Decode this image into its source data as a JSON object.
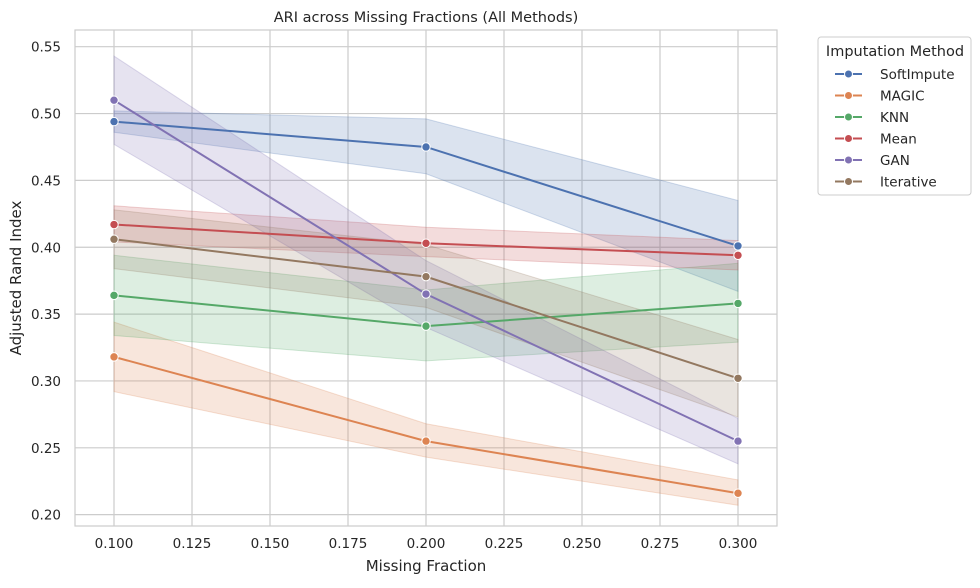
{
  "chart_data": {
    "type": "line",
    "title": "ARI across Missing Fractions (All Methods)",
    "xlabel": "Missing Fraction",
    "ylabel": "Adjusted Rand Index",
    "xlim": [
      0.0875,
      0.3125
    ],
    "ylim": [
      0.1915,
      0.5625
    ],
    "xticks": [
      0.1,
      0.125,
      0.15,
      0.175,
      0.2,
      0.225,
      0.25,
      0.275,
      0.3
    ],
    "xtick_labels": [
      "0.100",
      "0.125",
      "0.150",
      "0.175",
      "0.200",
      "0.225",
      "0.250",
      "0.275",
      "0.300"
    ],
    "yticks": [
      0.2,
      0.25,
      0.3,
      0.35,
      0.4,
      0.45,
      0.5,
      0.55
    ],
    "ytick_labels": [
      "0.20",
      "0.25",
      "0.30",
      "0.35",
      "0.40",
      "0.45",
      "0.50",
      "0.55"
    ],
    "grid": true,
    "legend": {
      "title": "Imputation Method",
      "placement": "outside-top-right"
    },
    "x": [
      0.1,
      0.2,
      0.3
    ],
    "series": [
      {
        "name": "SoftImpute",
        "color": "#4c72b0",
        "values": [
          0.494,
          0.475,
          0.401
        ],
        "ci_low": [
          0.486,
          0.455,
          0.367
        ],
        "ci_high": [
          0.502,
          0.496,
          0.435
        ]
      },
      {
        "name": "MAGIC",
        "color": "#dd8452",
        "values": [
          0.318,
          0.255,
          0.216
        ],
        "ci_low": [
          0.292,
          0.243,
          0.207
        ],
        "ci_high": [
          0.344,
          0.268,
          0.226
        ]
      },
      {
        "name": "KNN",
        "color": "#55a868",
        "values": [
          0.364,
          0.341,
          0.358
        ],
        "ci_low": [
          0.334,
          0.315,
          0.329
        ],
        "ci_high": [
          0.394,
          0.368,
          0.388
        ]
      },
      {
        "name": "Mean",
        "color": "#c44e52",
        "values": [
          0.417,
          0.403,
          0.394
        ],
        "ci_low": [
          0.404,
          0.393,
          0.383
        ],
        "ci_high": [
          0.431,
          0.415,
          0.405
        ]
      },
      {
        "name": "GAN",
        "color": "#8172b3",
        "values": [
          0.51,
          0.365,
          0.255
        ],
        "ci_low": [
          0.477,
          0.34,
          0.238
        ],
        "ci_high": [
          0.543,
          0.39,
          0.272
        ]
      },
      {
        "name": "Iterative",
        "color": "#937860",
        "values": [
          0.406,
          0.378,
          0.302
        ],
        "ci_low": [
          0.384,
          0.355,
          0.273
        ],
        "ci_high": [
          0.428,
          0.402,
          0.331
        ]
      }
    ]
  }
}
